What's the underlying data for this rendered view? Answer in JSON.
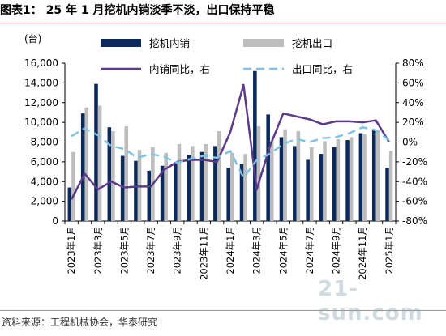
{
  "header": {
    "title": "图表1：  25 年 1 月挖机内销淡季不淡，出口保持平稳"
  },
  "footer": {
    "source": "资料来源：工程机械协会，华泰研究"
  },
  "watermark": {
    "text": "21-sun.com"
  },
  "chart_data": {
    "type": "bar+line",
    "left_unit": "(台)",
    "left_axis": {
      "min": 0,
      "max": 16000,
      "step": 2000,
      "ticks": [
        "0",
        "2,000",
        "4,000",
        "6,000",
        "8,000",
        "10,000",
        "12,000",
        "14,000",
        "16,000"
      ]
    },
    "right_axis": {
      "min": -0.8,
      "max": 0.8,
      "step": 0.2,
      "ticks": [
        "-80%",
        "-60%",
        "-40%",
        "-20%",
        "0%",
        "20%",
        "40%",
        "60%",
        "80%"
      ]
    },
    "categories": [
      "2023年1月",
      "2023年2月",
      "2023年3月",
      "2023年4月",
      "2023年5月",
      "2023年6月",
      "2023年7月",
      "2023年8月",
      "2023年9月",
      "2023年10月",
      "2023年11月",
      "2023年12月",
      "2024年1月",
      "2024年2月",
      "2024年3月",
      "2024年4月",
      "2024年5月",
      "2024年6月",
      "2024年7月",
      "2024年8月",
      "2024年9月",
      "2024年10月",
      "2024年11月",
      "2024年12月",
      "2025年1月"
    ],
    "x_tick_labels": [
      "2023年1月",
      "",
      "2023年3月",
      "",
      "2023年5月",
      "",
      "2023年7月",
      "",
      "2023年9月",
      "",
      "2023年11月",
      "",
      "2024年1月",
      "",
      "2024年3月",
      "",
      "2024年5月",
      "",
      "2024年7月",
      "",
      "2024年9月",
      "",
      "2024年11月",
      "",
      "2025年1月"
    ],
    "series": [
      {
        "name": "挖机内销",
        "kind": "bar",
        "axis": "left",
        "color": "#0b2a5b",
        "values": [
          3400,
          10900,
          13900,
          9500,
          6600,
          6100,
          5100,
          5600,
          5800,
          6700,
          7000,
          7600,
          5400,
          5800,
          15200,
          10800,
          8500,
          7600,
          6200,
          6800,
          7500,
          8200,
          8900,
          9200,
          5400
        ]
      },
      {
        "name": "挖机出口",
        "kind": "bar",
        "axis": "left",
        "color": "#bdbdbd",
        "values": [
          7000,
          11500,
          11700,
          9100,
          9600,
          7200,
          7500,
          6900,
          7800,
          7600,
          7800,
          9100,
          6900,
          6800,
          9600,
          8100,
          9300,
          9100,
          7500,
          8100,
          8300,
          8500,
          8800,
          9200,
          7100
        ]
      },
      {
        "name": "内销同比，右",
        "kind": "line",
        "axis": "right",
        "color": "#5b3a8a",
        "values": [
          -0.58,
          -0.32,
          -0.48,
          -0.4,
          -0.46,
          -0.45,
          -0.45,
          -0.28,
          -0.2,
          -0.18,
          -0.18,
          -0.2,
          0.1,
          0.58,
          -0.48,
          -0.04,
          0.29,
          0.26,
          0.23,
          0.18,
          0.21,
          0.21,
          0.2,
          0.22,
          0.0
        ]
      },
      {
        "name": "出口同比，右",
        "kind": "line",
        "axis": "right",
        "color": "#7ec3e6",
        "dashed": true,
        "values": [
          0.06,
          0.14,
          0.07,
          -0.04,
          -0.07,
          -0.16,
          -0.12,
          -0.15,
          -0.21,
          -0.17,
          -0.14,
          -0.16,
          -0.09,
          -0.36,
          -0.18,
          -0.12,
          -0.02,
          0.03,
          0.0,
          0.04,
          0.05,
          0.09,
          0.15,
          0.12,
          0.02
        ]
      }
    ],
    "legend_position": "top"
  }
}
